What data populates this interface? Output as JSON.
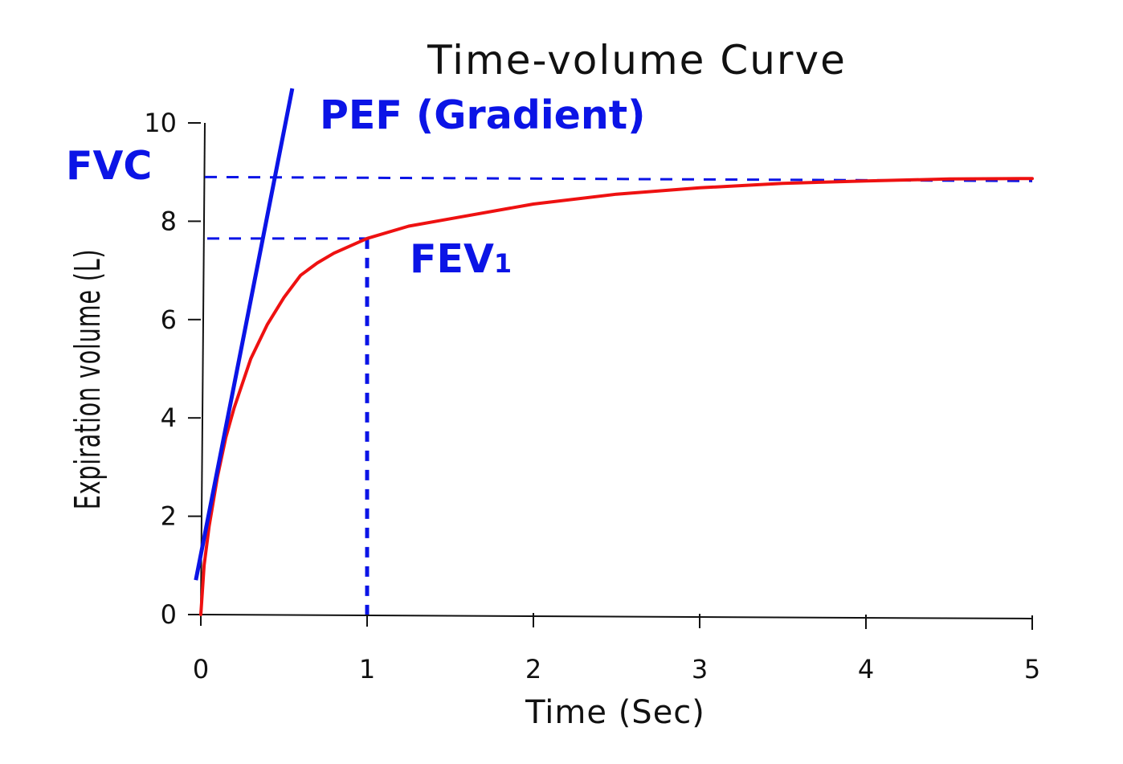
{
  "colors": {
    "curve": "#ee1111",
    "annotation": "#0b14e6",
    "axis": "#111111"
  },
  "chart_data": {
    "type": "line",
    "title": "Time-volume Curve",
    "xlabel": "Time (Sec)",
    "ylabel": "Expiration volume (L)",
    "xlim": [
      0,
      5
    ],
    "ylim": [
      0,
      10
    ],
    "xticks": [
      0,
      1,
      2,
      3,
      4,
      5
    ],
    "yticks": [
      0,
      2,
      4,
      6,
      8,
      10
    ],
    "grid": false,
    "series": [
      {
        "x": [
          0,
          0.02,
          0.05,
          0.1,
          0.15,
          0.2,
          0.3,
          0.4,
          0.5,
          0.6,
          0.7,
          0.8,
          1.0,
          1.25,
          1.5,
          2.0,
          2.5,
          3.0,
          3.5,
          4.0,
          4.5,
          5.0
        ],
        "y": [
          0,
          1.0,
          1.8,
          2.8,
          3.6,
          4.2,
          5.2,
          5.9,
          6.45,
          6.9,
          7.15,
          7.35,
          7.65,
          7.9,
          8.05,
          8.35,
          8.55,
          8.68,
          8.77,
          8.82,
          8.86,
          8.87
        ]
      }
    ],
    "annotations": {
      "fvc": {
        "label": "FVC",
        "value": 8.9
      },
      "fev1": {
        "label": "FEV1",
        "time": 1,
        "value": 7.65
      },
      "pef": {
        "label": "PEF (Gradient)",
        "line": {
          "x": [
            -0.03,
            0.55
          ],
          "y": [
            0.7,
            10.7
          ]
        }
      }
    }
  }
}
